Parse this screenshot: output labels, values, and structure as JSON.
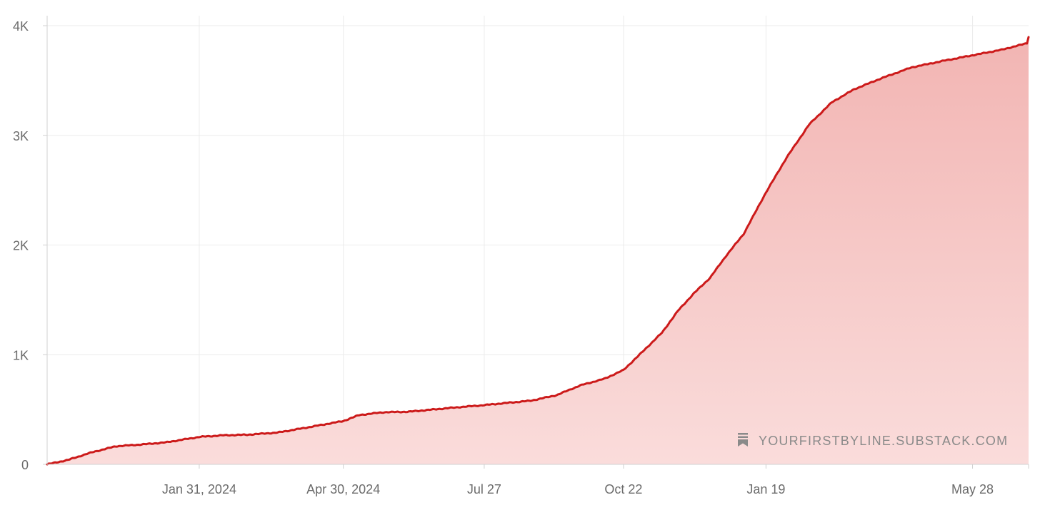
{
  "watermark": {
    "text": "YOURFIRSTBYLINE.SUBSTACK.COM",
    "icon": "bookmark-icon"
  },
  "colors": {
    "line": "#cc1a1a",
    "fill_top": "#f2b5b3",
    "fill_bottom": "#fadcdb",
    "grid": "#ebebeb",
    "axis": "#d0d0d0"
  },
  "chart_data": {
    "type": "area",
    "title": "",
    "xlabel": "",
    "ylabel": "",
    "grid": true,
    "x_ticks": [
      "Jan 31, 2024",
      "Apr 30, 2024",
      "Jul 27",
      "Oct 22",
      "Jan 19",
      "May 28"
    ],
    "y_ticks": [
      {
        "value": 0,
        "label": "0"
      },
      {
        "value": 1000,
        "label": "1K"
      },
      {
        "value": 2000,
        "label": "2K"
      },
      {
        "value": 3000,
        "label": "3K"
      },
      {
        "value": 4000,
        "label": "4K"
      }
    ],
    "ylim": [
      0,
      4000
    ],
    "xlim": [
      "2023-10-28",
      "2025-07-02"
    ],
    "series": [
      {
        "x": [
          "2023-10-28",
          "2023-11-10",
          "2023-11-25",
          "2023-12-10",
          "2023-12-25",
          "2024-01-10",
          "2024-01-31",
          "2024-02-15",
          "2024-03-01",
          "2024-03-20",
          "2024-04-05",
          "2024-04-30",
          "2024-05-10",
          "2024-05-25",
          "2024-06-10",
          "2024-06-25",
          "2024-07-10",
          "2024-07-27",
          "2024-08-10",
          "2024-08-25",
          "2024-09-10",
          "2024-09-25",
          "2024-10-10",
          "2024-10-22",
          "2024-11-01",
          "2024-11-15",
          "2024-11-25",
          "2024-12-05",
          "2024-12-15",
          "2024-12-25",
          "2025-01-05",
          "2025-01-19",
          "2025-02-01",
          "2025-02-15",
          "2025-03-01",
          "2025-03-15",
          "2025-04-01",
          "2025-04-20",
          "2025-05-10",
          "2025-05-28",
          "2025-06-15",
          "2025-07-01",
          "2025-07-02"
        ],
        "y": [
          0,
          40,
          110,
          165,
          180,
          200,
          250,
          265,
          270,
          290,
          330,
          395,
          450,
          475,
          480,
          500,
          520,
          540,
          560,
          580,
          630,
          720,
          780,
          860,
          1000,
          1200,
          1400,
          1560,
          1700,
          1900,
          2100,
          2480,
          2800,
          3100,
          3300,
          3420,
          3520,
          3620,
          3680,
          3730,
          3780,
          3840,
          3900
        ]
      }
    ]
  }
}
